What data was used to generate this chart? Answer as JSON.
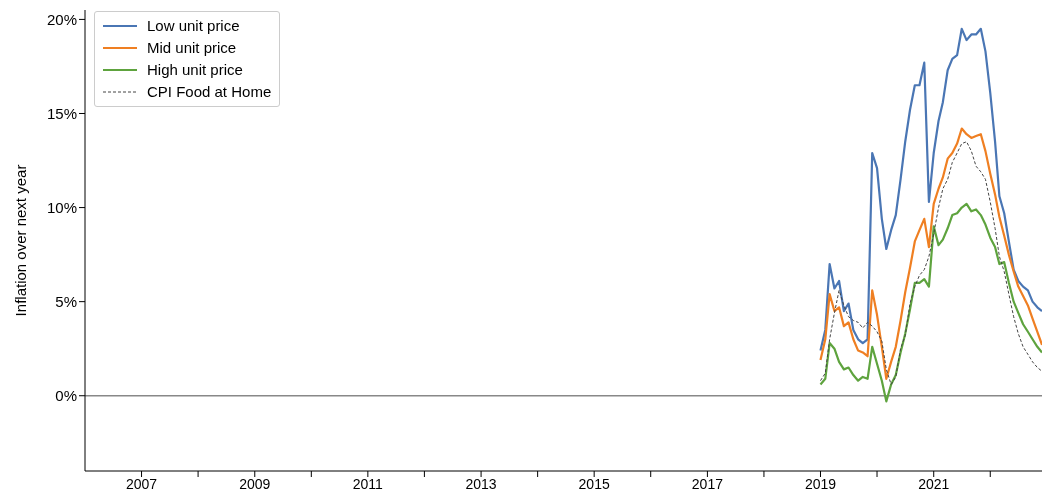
{
  "chart_data": {
    "type": "line",
    "ylabel": "Inflation over next year",
    "x": [
      "2019-01",
      "2019-02",
      "2019-03",
      "2019-04",
      "2019-05",
      "2019-06",
      "2019-07",
      "2019-08",
      "2019-09",
      "2019-10",
      "2019-11",
      "2019-12",
      "2020-01",
      "2020-02",
      "2020-03",
      "2020-04",
      "2020-05",
      "2020-06",
      "2020-07",
      "2020-08",
      "2020-09",
      "2020-10",
      "2020-11",
      "2020-12",
      "2021-01",
      "2021-02",
      "2021-03",
      "2021-04",
      "2021-05",
      "2021-06",
      "2021-07",
      "2021-08",
      "2021-09",
      "2021-10",
      "2021-11",
      "2021-12",
      "2022-01",
      "2022-02",
      "2022-03",
      "2022-04",
      "2022-05",
      "2022-06",
      "2022-07",
      "2022-08",
      "2022-09",
      "2022-10",
      "2022-11",
      "2022-12"
    ],
    "series": [
      {
        "name": "Low unit price",
        "color": "#4a76b4",
        "values": [
          2.4,
          3.5,
          7.0,
          5.7,
          6.1,
          4.5,
          4.9,
          3.5,
          3.0,
          2.8,
          3.0,
          12.9,
          12.1,
          9.4,
          7.8,
          8.8,
          9.6,
          11.5,
          13.5,
          15.2,
          16.5,
          16.5,
          17.7,
          10.3,
          12.9,
          14.6,
          15.6,
          17.3,
          17.9,
          18.1,
          19.5,
          18.9,
          19.2,
          19.2,
          19.5,
          18.3,
          16.1,
          13.5,
          10.6,
          9.7,
          8.2,
          6.7,
          6.1,
          5.8,
          5.6,
          5.0,
          4.7,
          4.5
        ]
      },
      {
        "name": "Mid unit price",
        "color": "#ef7f22",
        "values": [
          1.9,
          3.0,
          5.4,
          4.5,
          4.7,
          3.7,
          3.9,
          3.0,
          2.4,
          2.3,
          2.1,
          5.6,
          4.3,
          2.6,
          0.9,
          1.8,
          2.6,
          4.0,
          5.5,
          6.8,
          8.2,
          8.8,
          9.4,
          7.9,
          10.2,
          11.0,
          11.6,
          12.6,
          12.9,
          13.4,
          14.2,
          13.9,
          13.7,
          13.8,
          13.9,
          13.0,
          11.8,
          10.7,
          9.5,
          8.5,
          7.5,
          6.6,
          5.8,
          5.3,
          4.8,
          4.1,
          3.4,
          2.7
        ]
      },
      {
        "name": "High unit price",
        "color": "#5ea33e",
        "values": [
          0.6,
          0.9,
          2.8,
          2.5,
          1.8,
          1.4,
          1.5,
          1.1,
          0.8,
          1.0,
          0.9,
          2.6,
          1.7,
          0.8,
          -0.3,
          0.6,
          1.1,
          2.3,
          3.3,
          4.6,
          6.0,
          6.0,
          6.2,
          5.8,
          9.0,
          8.0,
          8.3,
          8.9,
          9.6,
          9.7,
          10.0,
          10.2,
          9.8,
          9.9,
          9.6,
          9.1,
          8.4,
          7.9,
          7.0,
          7.1,
          6.0,
          5.0,
          4.4,
          3.8,
          3.4,
          3.0,
          2.6,
          2.3
        ]
      },
      {
        "name": "CPI Food at Home",
        "color": "#444444",
        "line_style": "dashed",
        "values": [
          0.8,
          1.2,
          3.0,
          4.4,
          5.6,
          4.8,
          4.2,
          4.0,
          3.9,
          3.6,
          3.9,
          3.7,
          3.4,
          2.9,
          1.4,
          0.6,
          1.0,
          2.5,
          3.2,
          4.9,
          5.8,
          6.4,
          6.7,
          7.4,
          8.6,
          10.0,
          11.0,
          11.5,
          12.4,
          12.9,
          13.4,
          13.5,
          13.0,
          12.2,
          11.9,
          11.5,
          10.3,
          8.9,
          7.4,
          6.6,
          5.4,
          4.2,
          3.3,
          2.6,
          2.2,
          1.8,
          1.5,
          1.3
        ]
      }
    ],
    "xlim": [
      "2006-01",
      "2022-12"
    ],
    "xticks": [
      {
        "value": "2007",
        "label": "2007"
      },
      {
        "value": "2008",
        "label": null
      },
      {
        "value": "2009",
        "label": "2009"
      },
      {
        "value": "2010",
        "label": null
      },
      {
        "value": "2011",
        "label": "2011"
      },
      {
        "value": "2012",
        "label": null
      },
      {
        "value": "2013",
        "label": "2013"
      },
      {
        "value": "2014",
        "label": null
      },
      {
        "value": "2015",
        "label": "2015"
      },
      {
        "value": "2016",
        "label": null
      },
      {
        "value": "2017",
        "label": "2017"
      },
      {
        "value": "2018",
        "label": null
      },
      {
        "value": "2019",
        "label": "2019"
      },
      {
        "value": "2020",
        "label": null
      },
      {
        "value": "2021",
        "label": "2021"
      },
      {
        "value": "2022",
        "label": null
      }
    ],
    "ylim": [
      -4,
      20.5
    ],
    "yticks": [
      {
        "value": 0,
        "label": "0%"
      },
      {
        "value": 5,
        "label": "5%"
      },
      {
        "value": 10,
        "label": "10%"
      },
      {
        "value": 15,
        "label": "15%"
      },
      {
        "value": 20,
        "label": "20%"
      }
    ],
    "ref_lines": [
      {
        "axis": "y",
        "value": 0,
        "color": "#888888"
      }
    ],
    "grid": false,
    "legend": "top left",
    "marker": "none",
    "line_style": "solid"
  }
}
